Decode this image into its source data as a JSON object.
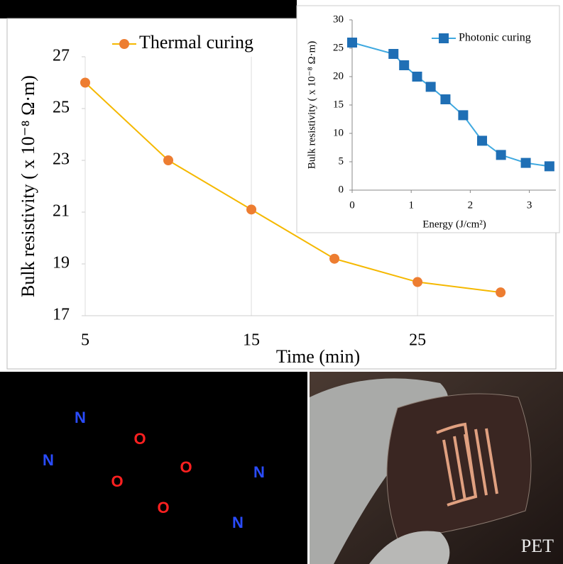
{
  "chart_data": [
    {
      "type": "line",
      "xlabel": "Time (min)",
      "ylabel": "Bulk resistivity ( x 10⁻⁸ Ω·m)",
      "x": [
        5,
        10,
        15,
        20,
        25,
        30
      ],
      "series": [
        {
          "name": "Thermal curing",
          "color": "#ed7d31",
          "line_color": "#f5b800",
          "marker": "circle",
          "values": [
            26,
            23,
            21.1,
            19.2,
            18.3,
            17.9
          ]
        }
      ],
      "xlim": [
        5,
        33.2
      ],
      "ylim": [
        17,
        27
      ],
      "xticks": [
        5,
        15,
        25
      ],
      "yticks": [
        17,
        19,
        21,
        23,
        25,
        27
      ],
      "grid": "x",
      "legend": "top-left"
    },
    {
      "type": "line",
      "xlabel": "Energy (J/cm²)",
      "ylabel": "Bulk resistivity ( x 10⁻⁸ Ω·m)",
      "x": [
        0,
        0.7,
        0.88,
        1.1,
        1.33,
        1.58,
        1.88,
        2.2,
        2.52,
        2.94,
        3.34
      ],
      "series": [
        {
          "name": "Photonic curing",
          "color": "#1f6fb5",
          "line_color": "#3fa9e0",
          "marker": "square",
          "values": [
            26,
            24,
            22,
            20,
            18.2,
            16,
            13.2,
            8.7,
            6.2,
            4.8,
            4.2
          ]
        }
      ],
      "xlim": [
        0,
        3.45
      ],
      "ylim": [
        0,
        30
      ],
      "xticks": [
        0,
        1,
        2,
        3
      ],
      "yticks": [
        0,
        5,
        10,
        15,
        20,
        25,
        30
      ],
      "grid": "none",
      "legend": "top-right"
    }
  ],
  "atom_labels": [
    "N",
    "O",
    "N",
    "O",
    "O",
    "N",
    "O",
    "N"
  ],
  "photo_label": "PET"
}
